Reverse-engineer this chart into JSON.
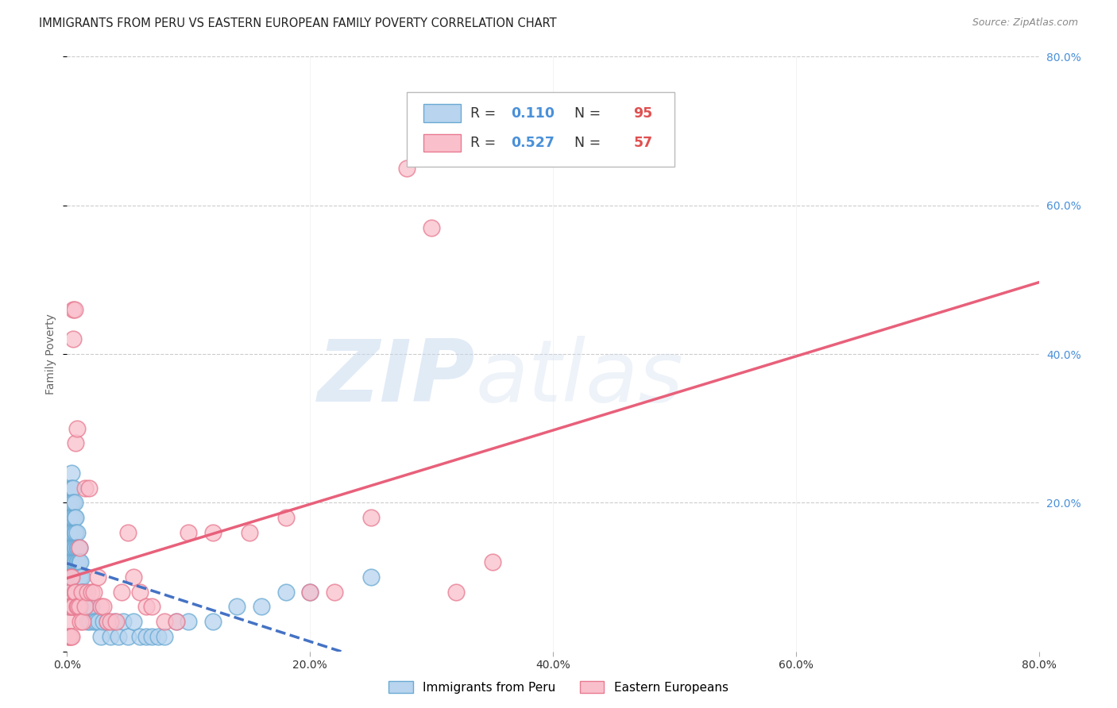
{
  "title": "IMMIGRANTS FROM PERU VS EASTERN EUROPEAN FAMILY POVERTY CORRELATION CHART",
  "source": "Source: ZipAtlas.com",
  "ylabel": "Family Poverty",
  "watermark_zip": "ZIP",
  "watermark_atlas": "atlas",
  "xlim": [
    0.0,
    0.8
  ],
  "ylim": [
    0.0,
    0.8
  ],
  "xticks": [
    0.0,
    0.2,
    0.4,
    0.6,
    0.8
  ],
  "yticks": [
    0.0,
    0.2,
    0.4,
    0.6,
    0.8
  ],
  "xtick_labels": [
    "0.0%",
    "20.0%",
    "40.0%",
    "60.0%",
    "80.0%"
  ],
  "ytick_labels_right": [
    "",
    "20.0%",
    "40.0%",
    "60.0%",
    "80.0%"
  ],
  "background_color": "#ffffff",
  "grid_color": "#cccccc",
  "title_color": "#222222",
  "axis_label_color": "#666666",
  "tick_color_right": "#4a90d9",
  "series": [
    {
      "name": "Immigrants from Peru",
      "R": "0.110",
      "N": "95",
      "facecolor": "#b8d4ee",
      "edgecolor": "#6aaad4",
      "line_color": "#4472c4",
      "line_style": "--",
      "x": [
        0.001,
        0.001,
        0.001,
        0.001,
        0.002,
        0.002,
        0.002,
        0.002,
        0.002,
        0.002,
        0.002,
        0.003,
        0.003,
        0.003,
        0.003,
        0.003,
        0.003,
        0.003,
        0.003,
        0.004,
        0.004,
        0.004,
        0.004,
        0.004,
        0.004,
        0.004,
        0.004,
        0.004,
        0.005,
        0.005,
        0.005,
        0.005,
        0.005,
        0.005,
        0.005,
        0.006,
        0.006,
        0.006,
        0.006,
        0.006,
        0.006,
        0.006,
        0.007,
        0.007,
        0.007,
        0.007,
        0.007,
        0.008,
        0.008,
        0.008,
        0.008,
        0.009,
        0.009,
        0.009,
        0.01,
        0.01,
        0.01,
        0.011,
        0.011,
        0.012,
        0.012,
        0.013,
        0.014,
        0.014,
        0.015,
        0.016,
        0.017,
        0.018,
        0.019,
        0.02,
        0.022,
        0.024,
        0.026,
        0.028,
        0.03,
        0.033,
        0.036,
        0.039,
        0.042,
        0.046,
        0.05,
        0.055,
        0.06,
        0.065,
        0.07,
        0.075,
        0.08,
        0.09,
        0.1,
        0.12,
        0.14,
        0.16,
        0.18,
        0.2,
        0.25
      ],
      "y": [
        0.12,
        0.1,
        0.08,
        0.06,
        0.2,
        0.18,
        0.16,
        0.14,
        0.12,
        0.1,
        0.06,
        0.22,
        0.2,
        0.18,
        0.16,
        0.14,
        0.12,
        0.1,
        0.08,
        0.24,
        0.22,
        0.2,
        0.18,
        0.16,
        0.14,
        0.12,
        0.1,
        0.08,
        0.22,
        0.2,
        0.18,
        0.16,
        0.14,
        0.12,
        0.1,
        0.2,
        0.18,
        0.16,
        0.14,
        0.12,
        0.1,
        0.08,
        0.18,
        0.16,
        0.14,
        0.12,
        0.1,
        0.16,
        0.14,
        0.12,
        0.1,
        0.14,
        0.12,
        0.1,
        0.14,
        0.12,
        0.1,
        0.12,
        0.1,
        0.1,
        0.08,
        0.08,
        0.08,
        0.06,
        0.06,
        0.06,
        0.04,
        0.06,
        0.04,
        0.06,
        0.04,
        0.04,
        0.04,
        0.02,
        0.04,
        0.04,
        0.02,
        0.04,
        0.02,
        0.04,
        0.02,
        0.04,
        0.02,
        0.02,
        0.02,
        0.02,
        0.02,
        0.04,
        0.04,
        0.04,
        0.06,
        0.06,
        0.08,
        0.08,
        0.1
      ]
    },
    {
      "name": "Eastern Europeans",
      "R": "0.527",
      "N": "57",
      "facecolor": "#f9c0cc",
      "edgecolor": "#e87a90",
      "line_color": "#e8607a",
      "line_style": "-",
      "x": [
        0.001,
        0.001,
        0.002,
        0.002,
        0.002,
        0.003,
        0.003,
        0.003,
        0.004,
        0.004,
        0.004,
        0.005,
        0.005,
        0.005,
        0.006,
        0.006,
        0.007,
        0.007,
        0.008,
        0.008,
        0.009,
        0.01,
        0.01,
        0.011,
        0.012,
        0.013,
        0.015,
        0.015,
        0.017,
        0.018,
        0.02,
        0.022,
        0.025,
        0.028,
        0.03,
        0.033,
        0.036,
        0.04,
        0.045,
        0.05,
        0.055,
        0.06,
        0.065,
        0.07,
        0.08,
        0.09,
        0.1,
        0.12,
        0.15,
        0.18,
        0.2,
        0.22,
        0.25,
        0.28,
        0.3,
        0.32,
        0.35
      ],
      "y": [
        0.04,
        0.02,
        0.08,
        0.06,
        0.02,
        0.1,
        0.06,
        0.02,
        0.1,
        0.06,
        0.02,
        0.46,
        0.42,
        0.06,
        0.46,
        0.08,
        0.28,
        0.08,
        0.3,
        0.06,
        0.06,
        0.14,
        0.06,
        0.04,
        0.08,
        0.04,
        0.22,
        0.06,
        0.08,
        0.22,
        0.08,
        0.08,
        0.1,
        0.06,
        0.06,
        0.04,
        0.04,
        0.04,
        0.08,
        0.16,
        0.1,
        0.08,
        0.06,
        0.06,
        0.04,
        0.04,
        0.16,
        0.16,
        0.16,
        0.18,
        0.08,
        0.08,
        0.18,
        0.65,
        0.57,
        0.08,
        0.12
      ]
    }
  ],
  "legend_R_color": "#4a90d9",
  "legend_N_color": "#e05050",
  "legend_text_color": "#333333",
  "bottom_legend": [
    {
      "label": "Immigrants from Peru",
      "facecolor": "#b8d4ee",
      "edgecolor": "#6aaad4"
    },
    {
      "label": "Eastern Europeans",
      "facecolor": "#f9c0cc",
      "edgecolor": "#e87a90"
    }
  ]
}
